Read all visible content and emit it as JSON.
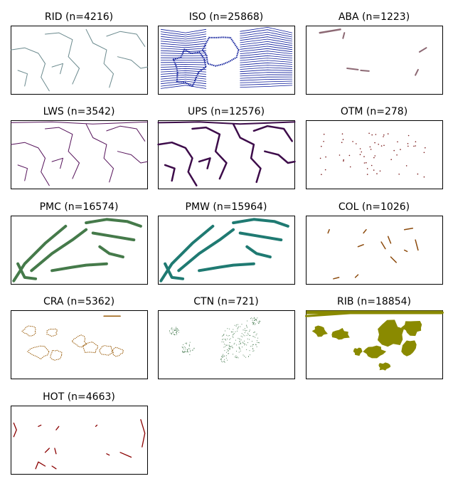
{
  "chart_data": [
    {
      "type": "scatter",
      "title": "RID (n=4216)",
      "color": "#6b8a8e",
      "shape": "ridges"
    },
    {
      "type": "scatter",
      "title": "ISO (n=25868)",
      "color": "#0b1a9a",
      "shape": "isochrons"
    },
    {
      "type": "scatter",
      "title": "ABA (n=1223)",
      "color": "#8c6873",
      "shape": "abandoned"
    },
    {
      "type": "scatter",
      "title": "LWS (n=3542)",
      "color": "#55125a",
      "shape": "boundaries-thin"
    },
    {
      "type": "scatter",
      "title": "UPS (n=12576)",
      "color": "#3d0c4a",
      "shape": "boundaries-thick"
    },
    {
      "type": "scatter",
      "title": "OTM (n=278)",
      "color": "#7a1a1a",
      "shape": "sparse-dots"
    },
    {
      "type": "scatter",
      "title": "PMC (n=16574)",
      "color": "#457a4a",
      "shape": "arcs"
    },
    {
      "type": "scatter",
      "title": "PMW (n=15964)",
      "color": "#1f7a72",
      "shape": "arcs"
    },
    {
      "type": "scatter",
      "title": "COL (n=1026)",
      "color": "#8c4a0c",
      "shape": "short-segments"
    },
    {
      "type": "scatter",
      "title": "CRA (n=5362)",
      "color": "#9a5c0a",
      "shape": "craton-outlines"
    },
    {
      "type": "scatter",
      "title": "CTN (n=721)",
      "color": "#2f6a3a",
      "shape": "stipple"
    },
    {
      "type": "scatter",
      "title": "RIB (n=18854)",
      "color": "#8a8a00",
      "shape": "filled-blobs"
    },
    {
      "type": "scatter",
      "title": "HOT (n=4663)",
      "color": "#8a0000",
      "shape": "hot-segments"
    }
  ]
}
